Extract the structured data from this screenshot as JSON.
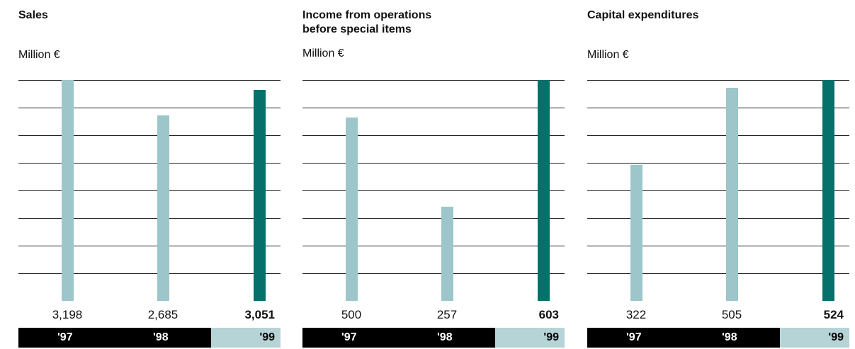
{
  "colors": {
    "past_bar": "#9cc6c9",
    "current_bar": "#06706b",
    "grid": "#222222",
    "year_dark_bg": "#000000",
    "year_current_bg": "#b6d3d6"
  },
  "chart_data": [
    {
      "type": "bar",
      "title": "Sales",
      "unit": "Million €",
      "categories": [
        "'97",
        "'98",
        "'99"
      ],
      "values": [
        3198,
        2685,
        3051
      ],
      "value_labels": [
        "3,198",
        "2,685",
        "3,051"
      ],
      "ylim": [
        0,
        3198
      ],
      "grid": true,
      "highlight_index": 2
    },
    {
      "type": "bar",
      "title": "Income from operations before special items",
      "title_lines": [
        "Income from operations",
        "before special items"
      ],
      "unit": "Million €",
      "categories": [
        "'97",
        "'98",
        "'99"
      ],
      "values": [
        500,
        257,
        603
      ],
      "value_labels": [
        "500",
        "257",
        "603"
      ],
      "ylim": [
        0,
        603
      ],
      "grid": true,
      "highlight_index": 2
    },
    {
      "type": "bar",
      "title": "Capital expenditures",
      "unit": "Million €",
      "categories": [
        "'97",
        "'98",
        "'99"
      ],
      "values": [
        322,
        505,
        524
      ],
      "value_labels": [
        "322",
        "505",
        "524"
      ],
      "ylim": [
        0,
        524
      ],
      "grid": true,
      "highlight_index": 2
    }
  ]
}
